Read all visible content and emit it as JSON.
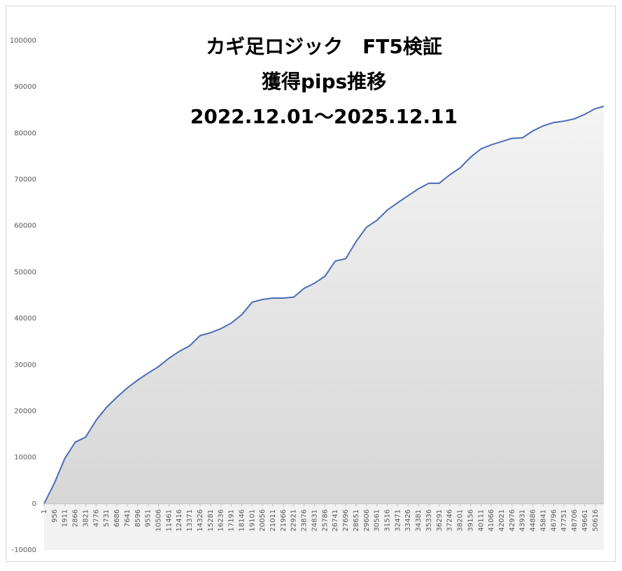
{
  "chart_data": {
    "type": "area",
    "title_lines": [
      "カギ足ロジック　FT5検証",
      "獲得pips推移",
      "2022.12.01～2025.12.11"
    ],
    "x": [
      1,
      956,
      1911,
      2866,
      3821,
      4776,
      5731,
      6686,
      7641,
      8596,
      9551,
      10506,
      11461,
      12416,
      13371,
      14326,
      15281,
      16236,
      17191,
      18146,
      19101,
      20056,
      21011,
      21966,
      22921,
      23876,
      24831,
      25786,
      26741,
      27696,
      28651,
      29606,
      30561,
      31516,
      32471,
      33426,
      34381,
      35336,
      36291,
      37246,
      38201,
      39156,
      40111,
      41066,
      42021,
      42976,
      43931,
      44886,
      45841,
      46796,
      47751,
      48706,
      49661,
      50616,
      51400
    ],
    "values": [
      0,
      4500,
      9800,
      13300,
      14400,
      18000,
      20800,
      23000,
      25000,
      26700,
      28200,
      29600,
      31400,
      32900,
      34100,
      36300,
      36900,
      37800,
      39000,
      40800,
      43500,
      44100,
      44400,
      44400,
      44600,
      46500,
      47600,
      49100,
      52400,
      52900,
      56600,
      59700,
      61200,
      63400,
      65000,
      66500,
      68000,
      69200,
      69200,
      71000,
      72500,
      74800,
      76600,
      77500,
      78200,
      78900,
      79000,
      80500,
      81600,
      82300,
      82600,
      83100,
      84100,
      85300,
      85800
    ],
    "color": "#4a6eb5",
    "fill_color": "#d9d9d9",
    "xlim": [
      1,
      51400
    ],
    "xticks": [
      1,
      956,
      1911,
      2866,
      3821,
      4776,
      5731,
      6686,
      7641,
      8596,
      9551,
      10506,
      11461,
      12416,
      13371,
      14326,
      15281,
      16236,
      17191,
      18146,
      19101,
      20056,
      21011,
      21966,
      22921,
      23876,
      24831,
      25786,
      26741,
      27696,
      28651,
      29606,
      30561,
      31516,
      32471,
      33426,
      34381,
      35336,
      36291,
      37246,
      38201,
      39156,
      40111,
      41066,
      42021,
      42976,
      43931,
      44886,
      45841,
      46796,
      47751,
      48706,
      49661,
      50616
    ],
    "ylim": [
      -10000,
      100000
    ],
    "yticks": [
      -10000,
      0,
      10000,
      20000,
      30000,
      40000,
      50000,
      60000,
      70000,
      80000,
      90000,
      100000
    ]
  }
}
